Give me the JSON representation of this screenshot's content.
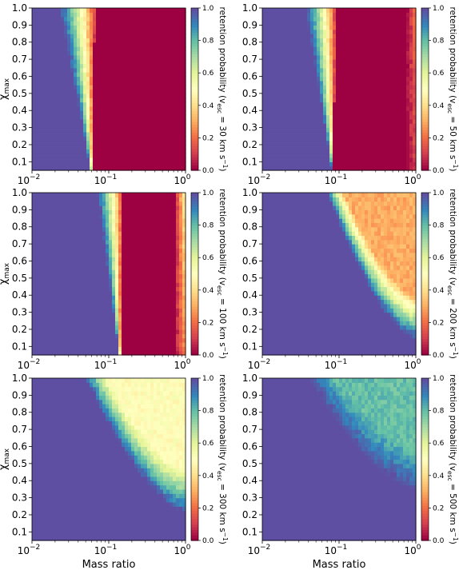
{
  "figure": {
    "x_axis_label": "Mass ratio",
    "y_axis_label": "χmax",
    "y_axis_label_sub": "max",
    "colorbar_label_prefix": "retention probability (v",
    "colorbar_label_sub": "esc",
    "colorbar_label_suffix": " = ",
    "colorbar_units": " km s",
    "colorbar_units_exp": "−1",
    "colorbar_units_close": ")",
    "x_tick_base": "10",
    "colorbar_colormap": "Spectral",
    "colorbar_colors": [
      "#9e0142",
      "#d53e4f",
      "#f46d43",
      "#fdae61",
      "#fee08b",
      "#ffffbf",
      "#e6f598",
      "#abdda4",
      "#66c2a5",
      "#3288bd",
      "#5e4fa2"
    ]
  },
  "chart_data": [
    {
      "type": "heatmap",
      "panel": "top-left",
      "v_esc": "30",
      "xlabel": "",
      "ylabel": "χmax",
      "x_scale": "log",
      "xlim": [
        0.01,
        1
      ],
      "ylim": [
        0.05,
        1.0
      ],
      "x_ticks": [
        "-2",
        "-1",
        "0"
      ],
      "y_ticks": [
        "0.1",
        "0.2",
        "0.3",
        "0.4",
        "0.5",
        "0.6",
        "0.7",
        "0.8",
        "0.9",
        "1.0"
      ],
      "colorbar_ticks": [
        "0.0",
        "0.2",
        "0.4",
        "0.6",
        "0.8",
        "1.0"
      ],
      "value_range": [
        0,
        1
      ],
      "model": {
        "kind": "kick-low",
        "q0": 0.066,
        "q0_chi": 0.066,
        "width": 0.35,
        "tail": 0.0
      }
    },
    {
      "type": "heatmap",
      "panel": "top-right",
      "v_esc": "50",
      "xlabel": "",
      "ylabel": "",
      "x_scale": "log",
      "xlim": [
        0.01,
        1
      ],
      "ylim": [
        0.05,
        1.0
      ],
      "x_ticks": [
        "-2",
        "-1",
        "0"
      ],
      "y_ticks": [
        "0.1",
        "0.2",
        "0.3",
        "0.4",
        "0.5",
        "0.6",
        "0.7",
        "0.8",
        "0.9",
        "1.0"
      ],
      "colorbar_ticks": [
        "0.0",
        "0.2",
        "0.4",
        "0.6",
        "0.8",
        "1.0"
      ],
      "value_range": [
        0,
        1
      ],
      "model": {
        "kind": "kick-low",
        "q0": 0.09,
        "q0_chi": 0.085,
        "width": 0.3,
        "tail": 0.2
      }
    },
    {
      "type": "heatmap",
      "panel": "middle-left",
      "v_esc": "100",
      "xlabel": "",
      "ylabel": "χmax",
      "x_scale": "log",
      "xlim": [
        0.01,
        1
      ],
      "ylim": [
        0.05,
        1.0
      ],
      "x_ticks": [
        "-2",
        "-1",
        "0"
      ],
      "y_ticks": [
        "0.1",
        "0.2",
        "0.3",
        "0.4",
        "0.5",
        "0.6",
        "0.7",
        "0.8",
        "0.9",
        "1.0"
      ],
      "colorbar_ticks": [
        "0.0",
        "0.2",
        "0.4",
        "0.6",
        "0.8",
        "1.0"
      ],
      "value_range": [
        0,
        1
      ],
      "model": {
        "kind": "kick-low",
        "q0": 0.15,
        "q0_chi": 0.14,
        "width": 0.25,
        "tail": 0.45
      }
    },
    {
      "type": "heatmap",
      "panel": "middle-right",
      "v_esc": "200",
      "xlabel": "",
      "ylabel": "",
      "x_scale": "log",
      "xlim": [
        0.01,
        1
      ],
      "ylim": [
        0.05,
        1.0
      ],
      "x_ticks": [
        "-2",
        "-1",
        "0"
      ],
      "y_ticks": [
        "0.1",
        "0.2",
        "0.3",
        "0.4",
        "0.5",
        "0.6",
        "0.7",
        "0.8",
        "0.9",
        "1.0"
      ],
      "colorbar_ticks": [
        "0.0",
        "0.2",
        "0.4",
        "0.6",
        "0.8",
        "1.0"
      ],
      "value_range": [
        0,
        1
      ],
      "model": {
        "kind": "bowl",
        "qmin": 0.07,
        "floor": 0.3,
        "chi_edge": 0.15
      }
    },
    {
      "type": "heatmap",
      "panel": "bottom-left",
      "v_esc": "300",
      "xlabel": "Mass ratio",
      "ylabel": "χmax",
      "x_scale": "log",
      "xlim": [
        0.01,
        1
      ],
      "ylim": [
        0.05,
        1.0
      ],
      "x_ticks": [
        "-2",
        "-1",
        "0"
      ],
      "y_ticks": [
        "0.1",
        "0.2",
        "0.3",
        "0.4",
        "0.5",
        "0.6",
        "0.7",
        "0.8",
        "0.9",
        "1.0"
      ],
      "colorbar_ticks": [
        "0.0",
        "0.2",
        "0.4",
        "0.6",
        "0.8",
        "1.0"
      ],
      "value_range": [
        0,
        1
      ],
      "model": {
        "kind": "bowl",
        "qmin": 0.05,
        "floor": 0.5,
        "chi_edge": 0.22
      }
    },
    {
      "type": "heatmap",
      "panel": "bottom-right",
      "v_esc": "500",
      "xlabel": "Mass ratio",
      "ylabel": "",
      "x_scale": "log",
      "xlim": [
        0.01,
        1
      ],
      "ylim": [
        0.05,
        1.0
      ],
      "x_ticks": [
        "-2",
        "-1",
        "0"
      ],
      "y_ticks": [
        "0.1",
        "0.2",
        "0.3",
        "0.4",
        "0.5",
        "0.6",
        "0.7",
        "0.8",
        "0.9",
        "1.0"
      ],
      "colorbar_ticks": [
        "0.0",
        "0.2",
        "0.4",
        "0.6",
        "0.8",
        "1.0"
      ],
      "value_range": [
        0,
        1
      ],
      "model": {
        "kind": "bowl",
        "qmin": 0.04,
        "floor": 0.8,
        "chi_edge": 0.35
      }
    }
  ]
}
